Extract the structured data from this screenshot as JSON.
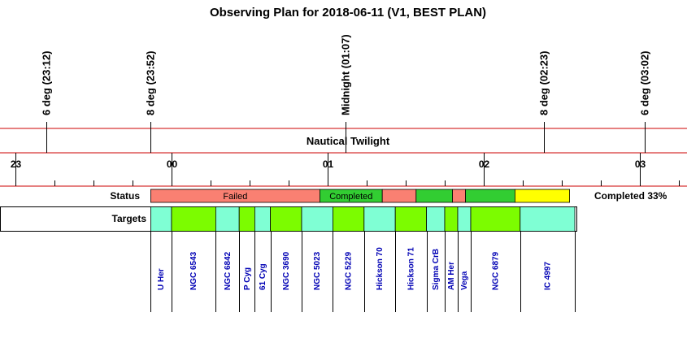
{
  "title": "Observing Plan for 2018-06-11 (V1, BEST PLAN)",
  "twilight_label": "Nautical Twilight",
  "row_labels": {
    "status": "Status",
    "targets": "Targets"
  },
  "completion_text": "Completed 33%",
  "colors": {
    "red_line": "#cc0000",
    "failed": "#fa8072",
    "completed": "#32cd32",
    "pending": "#ffff00",
    "target_a": "#7fffd4",
    "target_b": "#7cfc00",
    "target_text": "#0000b4"
  },
  "chart_data": {
    "type": "timeline",
    "date": "2018-06-11",
    "axis_range": [
      "22:40",
      "03:20"
    ],
    "hour_ticks": [
      {
        "time": "23:00",
        "label": "23"
      },
      {
        "time": "00:00",
        "label": "00"
      },
      {
        "time": "01:00",
        "label": "01"
      },
      {
        "time": "02:00",
        "label": "02"
      },
      {
        "time": "03:00",
        "label": "03"
      }
    ],
    "minor_tick_interval_min": 15,
    "markers": [
      {
        "time": "23:12",
        "label": "6 deg (23:12)"
      },
      {
        "time": "23:52",
        "label": "8 deg (23:52)"
      },
      {
        "time": "01:07",
        "label": "Midnight (01:07)"
      },
      {
        "time": "02:23",
        "label": "8 deg (02:23)"
      },
      {
        "time": "03:02",
        "label": "6 deg (03:02)"
      }
    ],
    "status_segments": [
      {
        "start": "23:52",
        "end": "00:57",
        "status": "failed",
        "label": "Failed"
      },
      {
        "start": "00:57",
        "end": "01:21",
        "status": "completed",
        "label": "Completed"
      },
      {
        "start": "01:21",
        "end": "01:34",
        "status": "failed",
        "label": ""
      },
      {
        "start": "01:34",
        "end": "01:48",
        "status": "completed",
        "label": ""
      },
      {
        "start": "01:48",
        "end": "01:53",
        "status": "failed",
        "label": ""
      },
      {
        "start": "01:53",
        "end": "02:12",
        "status": "completed",
        "label": ""
      },
      {
        "start": "02:12",
        "end": "02:33",
        "status": "pending",
        "label": ""
      }
    ],
    "targets": [
      {
        "name": "U Her",
        "start": "23:52",
        "end": "24:00"
      },
      {
        "name": "NGC 6543",
        "start": "24:00",
        "end": "24:17"
      },
      {
        "name": "NGC 6842",
        "start": "24:17",
        "end": "24:26"
      },
      {
        "name": "P Cyg",
        "start": "24:26",
        "end": "24:32"
      },
      {
        "name": "61 Cyg",
        "start": "24:32",
        "end": "24:38"
      },
      {
        "name": "NGC 3690",
        "start": "24:38",
        "end": "24:50"
      },
      {
        "name": "NGC 5023",
        "start": "24:50",
        "end": "25:02"
      },
      {
        "name": "NGC 5229",
        "start": "25:02",
        "end": "25:14"
      },
      {
        "name": "Hickson 70",
        "start": "25:14",
        "end": "25:26"
      },
      {
        "name": "Hickson 71",
        "start": "25:26",
        "end": "25:38"
      },
      {
        "name": "Sigma CrB",
        "start": "25:38",
        "end": "25:45"
      },
      {
        "name": "AM Her",
        "start": "25:45",
        "end": "25:50"
      },
      {
        "name": "Vega",
        "start": "25:50",
        "end": "25:55"
      },
      {
        "name": "NGC 6879",
        "start": "25:55",
        "end": "26:14"
      },
      {
        "name": "IC 4997",
        "start": "26:14",
        "end": "26:35"
      }
    ]
  }
}
